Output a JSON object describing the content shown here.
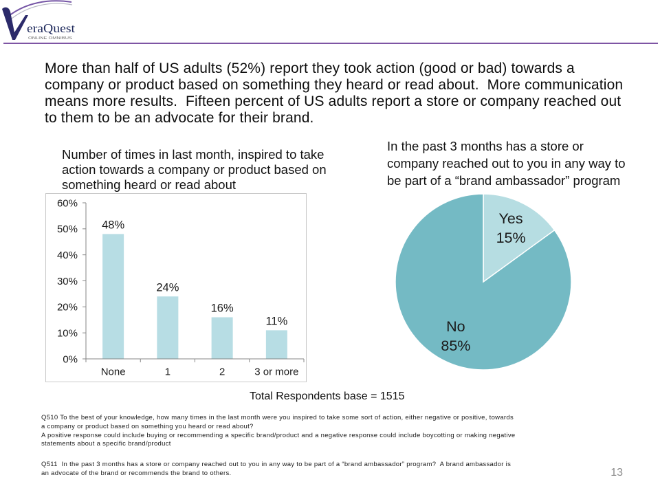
{
  "logo": {
    "initial": "V",
    "wordmark": "eraQuest",
    "tagline": "ONLINE OMNIBUS"
  },
  "colors": {
    "divider": "#7E55A4",
    "axis": "#868686"
  },
  "headline": {
    "lines": [
      "More than half of US adults (52%) report they took action (good or bad) towards a",
      "company or product based on something they heard or read about.  More communication",
      "means more results.  Fifteen percent of US adults report a store or company reached out",
      "to them to be an advocate for their brand."
    ]
  },
  "chart_data": [
    {
      "type": "bar",
      "title_lines": [
        "Number of times in last month, inspired to take",
        "action towards a company or product based on",
        "something heard or read about"
      ],
      "categories": [
        "None",
        "1",
        "2",
        "3 or more"
      ],
      "values": [
        48,
        24,
        16,
        11
      ],
      "data_labels": [
        "48%",
        "24%",
        "16%",
        "11%"
      ],
      "y_ticks": [
        {
          "value": 0,
          "label": "0%"
        },
        {
          "value": 10,
          "label": "10%"
        },
        {
          "value": 20,
          "label": "20%"
        },
        {
          "value": 30,
          "label": "30%"
        },
        {
          "value": 40,
          "label": "40%"
        },
        {
          "value": 50,
          "label": "50%"
        },
        {
          "value": 60,
          "label": "60%"
        }
      ],
      "ylim": [
        0,
        60
      ],
      "grid": false,
      "legend": "none",
      "bar_color": "#B7DDE4"
    },
    {
      "type": "pie",
      "title_lines": [
        "In the past 3 months has a store or",
        "company reached out to you in any way to",
        "be part of a “brand ambassador” program"
      ],
      "slices": [
        {
          "label": "Yes",
          "value": 15,
          "value_label": "15%",
          "color": "#B6DDE2"
        },
        {
          "label": "No",
          "value": 85,
          "value_label": "85%",
          "color": "#74BAC4"
        }
      ],
      "legend": "none"
    }
  ],
  "base_note": "Total Respondents base = 1515",
  "footnotes": [
    {
      "lines": [
        "Q510 To the best of your knowledge, how many times in the last month were you inspired to take some sort of action, either negative or positive, towards",
        "a company or product based on something you heard or read about?"
      ]
    },
    {
      "lines": [
        "A positive response could include buying or recommending a specific brand/product and a negative response could include boycotting or making negative",
        "statements about a specific brand/product"
      ]
    },
    {
      "lines": [
        "Q511  In the past 3 months has a store or company reached out to you in any way to be part of a “brand ambassador” program?  A brand ambassador is",
        "an advocate of the brand or recommends the brand to others."
      ]
    }
  ],
  "page_number": "13"
}
